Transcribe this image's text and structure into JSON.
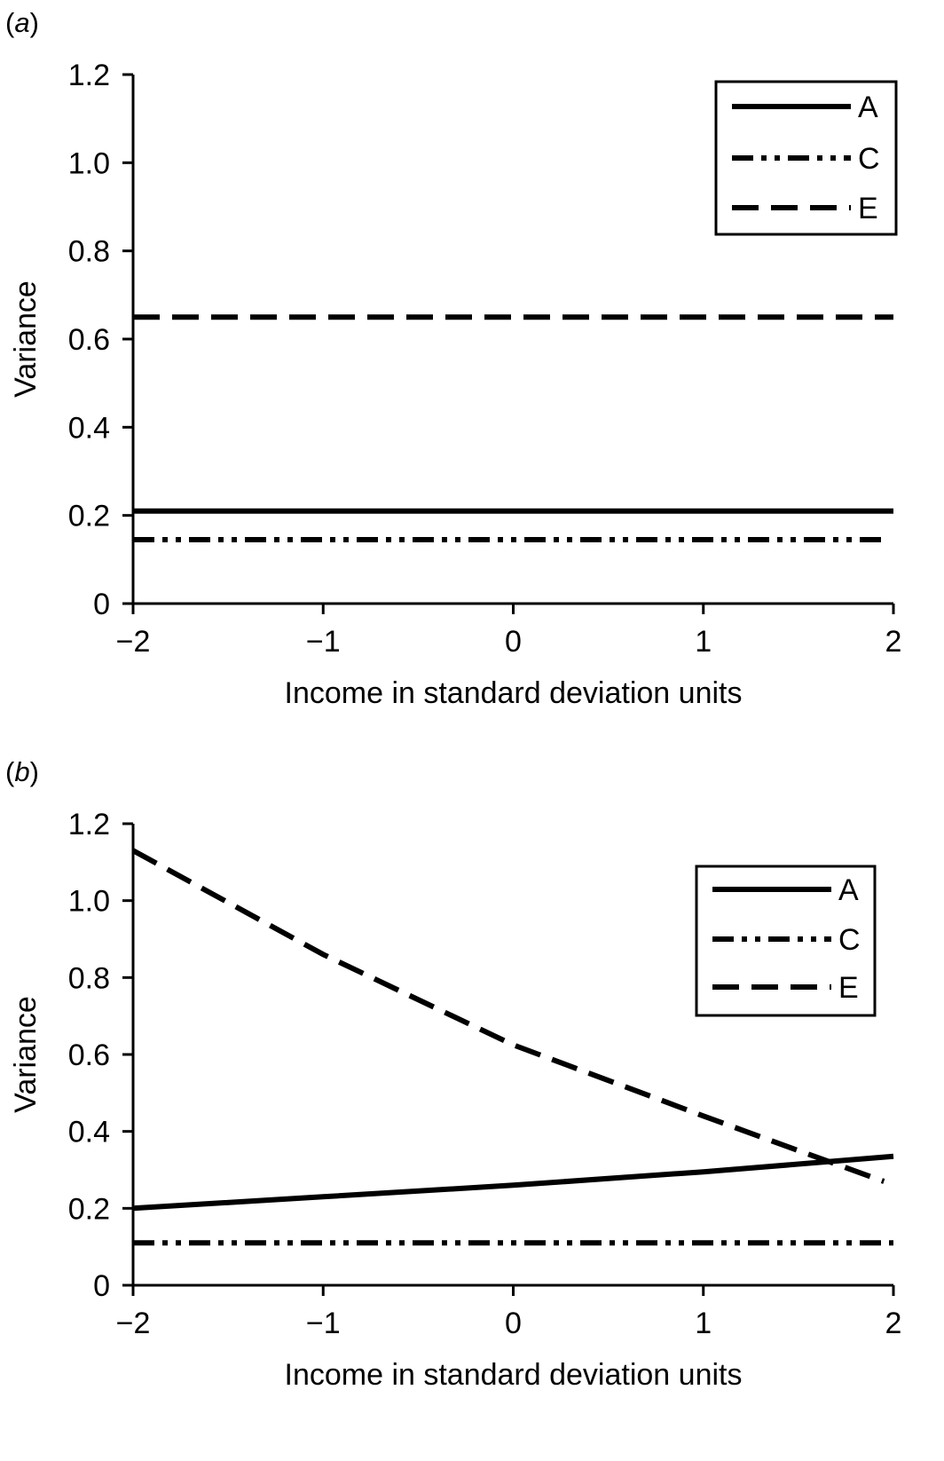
{
  "chart_data": [
    {
      "panel_label_letter": "a",
      "type": "line",
      "xlabel": "Income in standard deviation units",
      "ylabel": "Variance",
      "xlim": [
        -2,
        2
      ],
      "ylim": [
        0,
        1.2
      ],
      "xticks": [
        -2,
        -1,
        0,
        1,
        2
      ],
      "xtick_labels": [
        "−2",
        "−1",
        "0",
        "1",
        "2"
      ],
      "yticks": [
        0,
        0.2,
        0.4,
        0.6,
        0.8,
        1.0,
        1.2
      ],
      "ytick_labels": [
        "0",
        "0.2",
        "0.4",
        "0.6",
        "0.8",
        "1.0",
        "1.2"
      ],
      "grid": false,
      "legend_position": "top-right",
      "series": [
        {
          "name": "A",
          "style": "solid",
          "x": [
            -2,
            2
          ],
          "y": [
            0.21,
            0.21
          ]
        },
        {
          "name": "C",
          "style": "dash-dot-dot",
          "x": [
            -2,
            1.95
          ],
          "y": [
            0.145,
            0.145
          ]
        },
        {
          "name": "E",
          "style": "dashed",
          "x": [
            -2,
            2
          ],
          "y": [
            0.65,
            0.65
          ]
        }
      ]
    },
    {
      "panel_label_letter": "b",
      "type": "line",
      "xlabel": "Income in standard deviation units",
      "ylabel": "Variance",
      "xlim": [
        -2,
        2
      ],
      "ylim": [
        0,
        1.2
      ],
      "xticks": [
        -2,
        -1,
        0,
        1,
        2
      ],
      "xtick_labels": [
        "−2",
        "−1",
        "0",
        "1",
        "2"
      ],
      "yticks": [
        0,
        0.2,
        0.4,
        0.6,
        0.8,
        1.0,
        1.2
      ],
      "ytick_labels": [
        "0",
        "0.2",
        "0.4",
        "0.6",
        "0.8",
        "1.0",
        "1.2"
      ],
      "grid": false,
      "legend_position": "upper-right",
      "series": [
        {
          "name": "A",
          "style": "solid",
          "x": [
            -2,
            -1,
            0,
            1,
            2
          ],
          "y": [
            0.2,
            0.23,
            0.26,
            0.295,
            0.335
          ]
        },
        {
          "name": "C",
          "style": "dash-dot-dot",
          "x": [
            -2,
            2
          ],
          "y": [
            0.11,
            0.11
          ]
        },
        {
          "name": "E",
          "style": "dashed",
          "x": [
            -2,
            -1,
            0,
            1,
            1.5,
            1.95
          ],
          "y": [
            1.13,
            0.86,
            0.625,
            0.44,
            0.35,
            0.27
          ]
        }
      ]
    }
  ]
}
